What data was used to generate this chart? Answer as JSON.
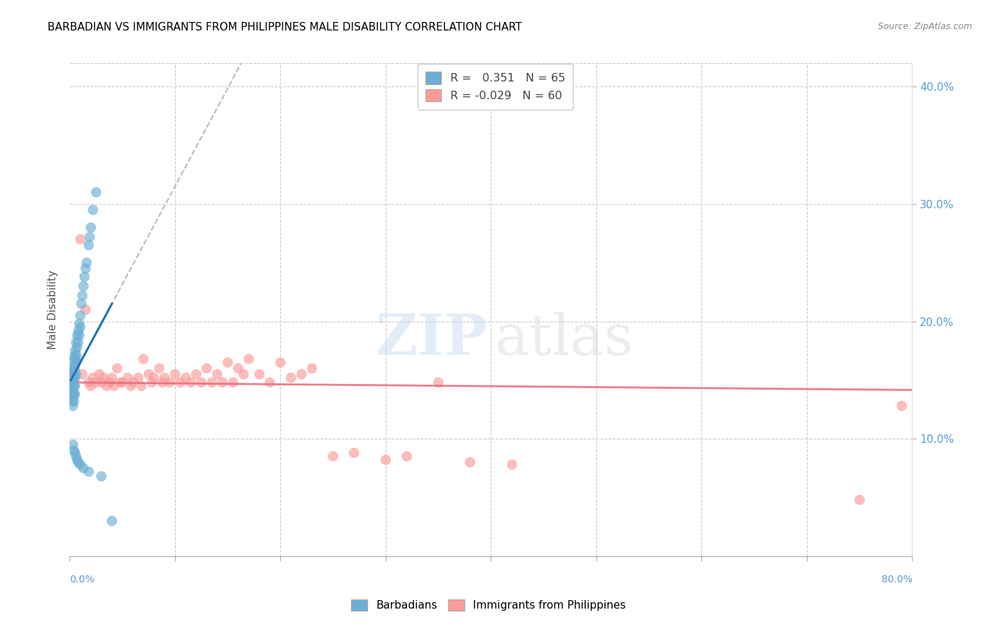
{
  "title": "BARBADIAN VS IMMIGRANTS FROM PHILIPPINES MALE DISABILITY CORRELATION CHART",
  "source": "Source: ZipAtlas.com",
  "ylabel": "Male Disability",
  "ytick_labels": [
    "10.0%",
    "20.0%",
    "30.0%",
    "40.0%"
  ],
  "ytick_values": [
    0.1,
    0.2,
    0.3,
    0.4
  ],
  "xlim": [
    0.0,
    0.8
  ],
  "ylim": [
    0.0,
    0.42
  ],
  "barbadian_color": "#6baed6",
  "philippines_color": "#fb9a99",
  "trend_barbadian_color": "#2171b5",
  "trend_philippines_color": "#e8697a",
  "watermark_zip": "ZIP",
  "watermark_atlas": "atlas",
  "barbadian_x": [
    0.001,
    0.001,
    0.001,
    0.001,
    0.002,
    0.002,
    0.002,
    0.002,
    0.002,
    0.003,
    0.003,
    0.003,
    0.003,
    0.003,
    0.003,
    0.003,
    0.004,
    0.004,
    0.004,
    0.004,
    0.004,
    0.004,
    0.004,
    0.005,
    0.005,
    0.005,
    0.005,
    0.005,
    0.005,
    0.006,
    0.006,
    0.006,
    0.006,
    0.007,
    0.007,
    0.007,
    0.008,
    0.008,
    0.009,
    0.009,
    0.01,
    0.01,
    0.011,
    0.012,
    0.013,
    0.014,
    0.015,
    0.016,
    0.018,
    0.019,
    0.02,
    0.022,
    0.025,
    0.003,
    0.004,
    0.005,
    0.006,
    0.007,
    0.008,
    0.01,
    0.013,
    0.018,
    0.03,
    0.04
  ],
  "barbadian_y": [
    0.155,
    0.15,
    0.145,
    0.14,
    0.155,
    0.15,
    0.145,
    0.138,
    0.132,
    0.165,
    0.158,
    0.152,
    0.148,
    0.142,
    0.135,
    0.128,
    0.17,
    0.162,
    0.155,
    0.15,
    0.145,
    0.138,
    0.132,
    0.175,
    0.168,
    0.16,
    0.152,
    0.145,
    0.138,
    0.182,
    0.172,
    0.165,
    0.155,
    0.188,
    0.178,
    0.168,
    0.192,
    0.182,
    0.198,
    0.188,
    0.205,
    0.195,
    0.215,
    0.222,
    0.23,
    0.238,
    0.245,
    0.25,
    0.265,
    0.272,
    0.28,
    0.295,
    0.31,
    0.095,
    0.09,
    0.088,
    0.085,
    0.082,
    0.08,
    0.078,
    0.075,
    0.072,
    0.068,
    0.03
  ],
  "philippines_x": [
    0.01,
    0.012,
    0.015,
    0.018,
    0.02,
    0.022,
    0.025,
    0.028,
    0.03,
    0.032,
    0.035,
    0.038,
    0.04,
    0.042,
    0.045,
    0.048,
    0.05,
    0.055,
    0.058,
    0.06,
    0.065,
    0.068,
    0.07,
    0.075,
    0.078,
    0.08,
    0.085,
    0.088,
    0.09,
    0.095,
    0.1,
    0.105,
    0.11,
    0.115,
    0.12,
    0.125,
    0.13,
    0.135,
    0.14,
    0.145,
    0.15,
    0.155,
    0.16,
    0.165,
    0.17,
    0.18,
    0.19,
    0.2,
    0.21,
    0.22,
    0.23,
    0.25,
    0.27,
    0.3,
    0.32,
    0.35,
    0.38,
    0.42,
    0.75,
    0.79
  ],
  "philippines_y": [
    0.27,
    0.155,
    0.21,
    0.148,
    0.145,
    0.152,
    0.148,
    0.155,
    0.148,
    0.152,
    0.145,
    0.148,
    0.152,
    0.145,
    0.16,
    0.148,
    0.148,
    0.152,
    0.145,
    0.148,
    0.152,
    0.145,
    0.168,
    0.155,
    0.148,
    0.152,
    0.16,
    0.148,
    0.152,
    0.148,
    0.155,
    0.148,
    0.152,
    0.148,
    0.155,
    0.148,
    0.16,
    0.148,
    0.155,
    0.148,
    0.165,
    0.148,
    0.16,
    0.155,
    0.168,
    0.155,
    0.148,
    0.165,
    0.152,
    0.155,
    0.16,
    0.085,
    0.088,
    0.082,
    0.085,
    0.148,
    0.08,
    0.078,
    0.048,
    0.128
  ]
}
